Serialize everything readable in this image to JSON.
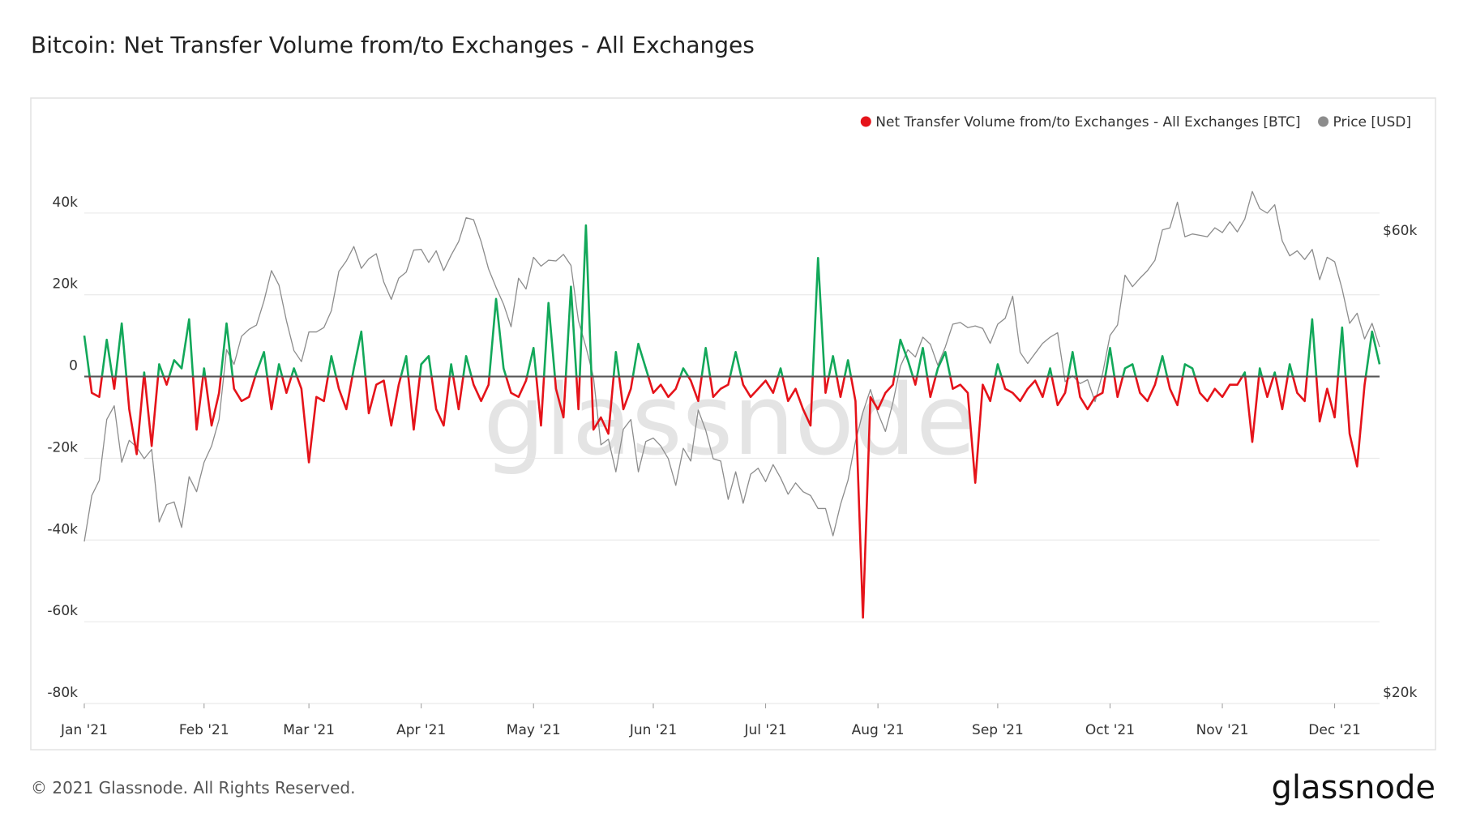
{
  "chart_data": {
    "type": "line",
    "title": "Bitcoin: Net Transfer Volume from/to Exchanges - All Exchanges",
    "watermark": "glassnode",
    "footer": "© 2021 Glassnode. All Rights Reserved.",
    "logo": "glassnode",
    "categories": [
      "Jan '21",
      null,
      null,
      null,
      null,
      null,
      null,
      null,
      null,
      null,
      null,
      null,
      null,
      null,
      null,
      null,
      "Feb '21",
      null,
      null,
      null,
      null,
      null,
      null,
      null,
      null,
      null,
      null,
      null,
      null,
      null,
      "Mar '21",
      null,
      null,
      null,
      null,
      null,
      null,
      null,
      null,
      null,
      null,
      null,
      null,
      null,
      null,
      "Apr '21",
      null,
      null,
      null,
      null,
      null,
      null,
      null,
      null,
      null,
      null,
      null,
      null,
      null,
      null,
      "May '21",
      null,
      null,
      null,
      null,
      null,
      null,
      null,
      null,
      null,
      null,
      null,
      null,
      null,
      null,
      null,
      "Jun '21",
      null,
      null,
      null,
      null,
      null,
      null,
      null,
      null,
      null,
      null,
      null,
      null,
      null,
      null,
      "Jul '21",
      null,
      null,
      null,
      null,
      null,
      null,
      null,
      null,
      null,
      null,
      null,
      null,
      null,
      null,
      "Aug '21",
      null,
      null,
      null,
      null,
      null,
      null,
      null,
      null,
      null,
      null,
      null,
      null,
      null,
      null,
      null,
      "Sep '21",
      null,
      null,
      null,
      null,
      null,
      null,
      null,
      null,
      null,
      null,
      null,
      null,
      null,
      null,
      "Oct '21",
      null,
      null,
      null,
      null,
      null,
      null,
      null,
      null,
      null,
      null,
      null,
      null,
      null,
      null,
      "Nov '21",
      null,
      null,
      null,
      null,
      null,
      null,
      null,
      null,
      null,
      null,
      null,
      null,
      null,
      null,
      "Dec '21",
      null,
      null,
      null,
      null,
      null,
      null
    ],
    "series": [
      {
        "name": "Net Transfer Volume from/to Exchanges - All Exchanges [BTC]",
        "color": "#e5131a",
        "positive_color": "#12a85a",
        "values": [
          10000,
          -4000,
          -5000,
          9000,
          -3000,
          13000,
          -8000,
          -19000,
          1000,
          -17000,
          3000,
          -2000,
          4000,
          2000,
          14000,
          -13000,
          2000,
          -12000,
          -4000,
          13000,
          -3000,
          -6000,
          -5000,
          1000,
          6000,
          -8000,
          3000,
          -4000,
          2000,
          -3000,
          -21000,
          -5000,
          -6000,
          5000,
          -3000,
          -8000,
          2000,
          11000,
          -9000,
          -2000,
          -1000,
          -12000,
          -2000,
          5000,
          -13000,
          3000,
          5000,
          -8000,
          -12000,
          3000,
          -8000,
          5000,
          -2000,
          -6000,
          -2000,
          19000,
          2000,
          -4000,
          -5000,
          -1000,
          7000,
          -12000,
          18000,
          -3000,
          -10000,
          22000,
          -8000,
          37000,
          -13000,
          -10000,
          -14000,
          6000,
          -8000,
          -3000,
          8000,
          2000,
          -4000,
          -2000,
          -5000,
          -3000,
          2000,
          -1000,
          -6000,
          7000,
          -5000,
          -3000,
          -2000,
          6000,
          -2000,
          -5000,
          -3000,
          -1000,
          -4000,
          2000,
          -6000,
          -3000,
          -8000,
          -12000,
          29000,
          -4000,
          5000,
          -5000,
          4000,
          -6000,
          -59000,
          -5000,
          -8000,
          -4000,
          -2000,
          9000,
          4000,
          -2000,
          7000,
          -5000,
          2000,
          6000,
          -3000,
          -2000,
          -4000,
          -26000,
          -2000,
          -6000,
          3000,
          -3000,
          -4000,
          -6000,
          -3000,
          -1000,
          -5000,
          2000,
          -7000,
          -4000,
          6000,
          -5000,
          -8000,
          -5000,
          -4000,
          7000,
          -5000,
          2000,
          3000,
          -4000,
          -6000,
          -2000,
          5000,
          -3000,
          -7000,
          3000,
          2000,
          -4000,
          -6000,
          -3000,
          -5000,
          -2000,
          -2000,
          1000,
          -16000,
          2000,
          -5000,
          1000,
          -8000,
          3000,
          -4000,
          -6000,
          14000,
          -11000,
          -3000,
          -10000,
          12000,
          -14000,
          -22000,
          -2000,
          11000,
          3000
        ]
      },
      {
        "name": "Price [USD]",
        "color": "#8c8c8c",
        "axis": "y2",
        "values": [
          29400,
          32800,
          34000,
          39300,
          40600,
          35500,
          37400,
          36800,
          35800,
          36600,
          30800,
          32100,
          32300,
          30400,
          34300,
          33100,
          35500,
          36900,
          39300,
          46400,
          44800,
          47900,
          48700,
          49200,
          52100,
          56000,
          54100,
          49700,
          46300,
          45100,
          48400,
          48400,
          48900,
          50900,
          55900,
          57300,
          59300,
          56300,
          57600,
          58300,
          54500,
          52300,
          55000,
          55800,
          58800,
          58900,
          57100,
          58700,
          56000,
          58100,
          60000,
          63500,
          63200,
          60000,
          56200,
          53800,
          51700,
          49000,
          55000,
          53600,
          57800,
          56600,
          57400,
          57300,
          58200,
          56700,
          49700,
          46700,
          43500,
          37000,
          37500,
          34700,
          38400,
          39300,
          34700,
          37300,
          37600,
          36900,
          35800,
          33600,
          36700,
          35600,
          40200,
          38300,
          35800,
          35600,
          32500,
          34700,
          32200,
          34500,
          35000,
          33900,
          35300,
          34200,
          32900,
          33800,
          33100,
          32800,
          31800,
          31800,
          29800,
          32100,
          34000,
          37300,
          40000,
          42200,
          39900,
          38200,
          40900,
          44600,
          46400,
          45600,
          47800,
          47000,
          44700,
          46700,
          49300,
          49500,
          48900,
          49100,
          48800,
          47100,
          49300,
          50000,
          52700,
          46100,
          44900,
          46000,
          47100,
          47800,
          48300,
          43000,
          43600,
          42800,
          43200,
          41000,
          43800,
          48000,
          49200,
          55400,
          53900,
          55000,
          56000,
          57400,
          61700,
          62000,
          65900,
          60700,
          61100,
          60900,
          60700,
          62000,
          61300,
          62900,
          61400,
          63300,
          67600,
          64900,
          64200,
          65500,
          60100,
          58000,
          58700,
          57500,
          58900,
          54800,
          57800,
          57200,
          53600,
          49400,
          50600,
          47600,
          49400,
          46700
        ]
      }
    ],
    "ylim": [
      -80000,
      60000
    ],
    "yticks": [
      {
        "value": -80000,
        "label": "-80k"
      },
      {
        "value": -60000,
        "label": "-60k"
      },
      {
        "value": -40000,
        "label": "-40k"
      },
      {
        "value": -20000,
        "label": "-20k"
      },
      0,
      {
        "value": 20000,
        "label": "20k"
      },
      {
        "value": 40000,
        "label": "40k"
      }
    ],
    "y2lim": [
      20000,
      78000
    ],
    "y2_scale": "log",
    "y2ticks": [
      {
        "value": 20000,
        "label": "$20k"
      },
      {
        "value": 60000,
        "label": "$60k"
      }
    ],
    "grid": true,
    "legend": "top-right"
  }
}
